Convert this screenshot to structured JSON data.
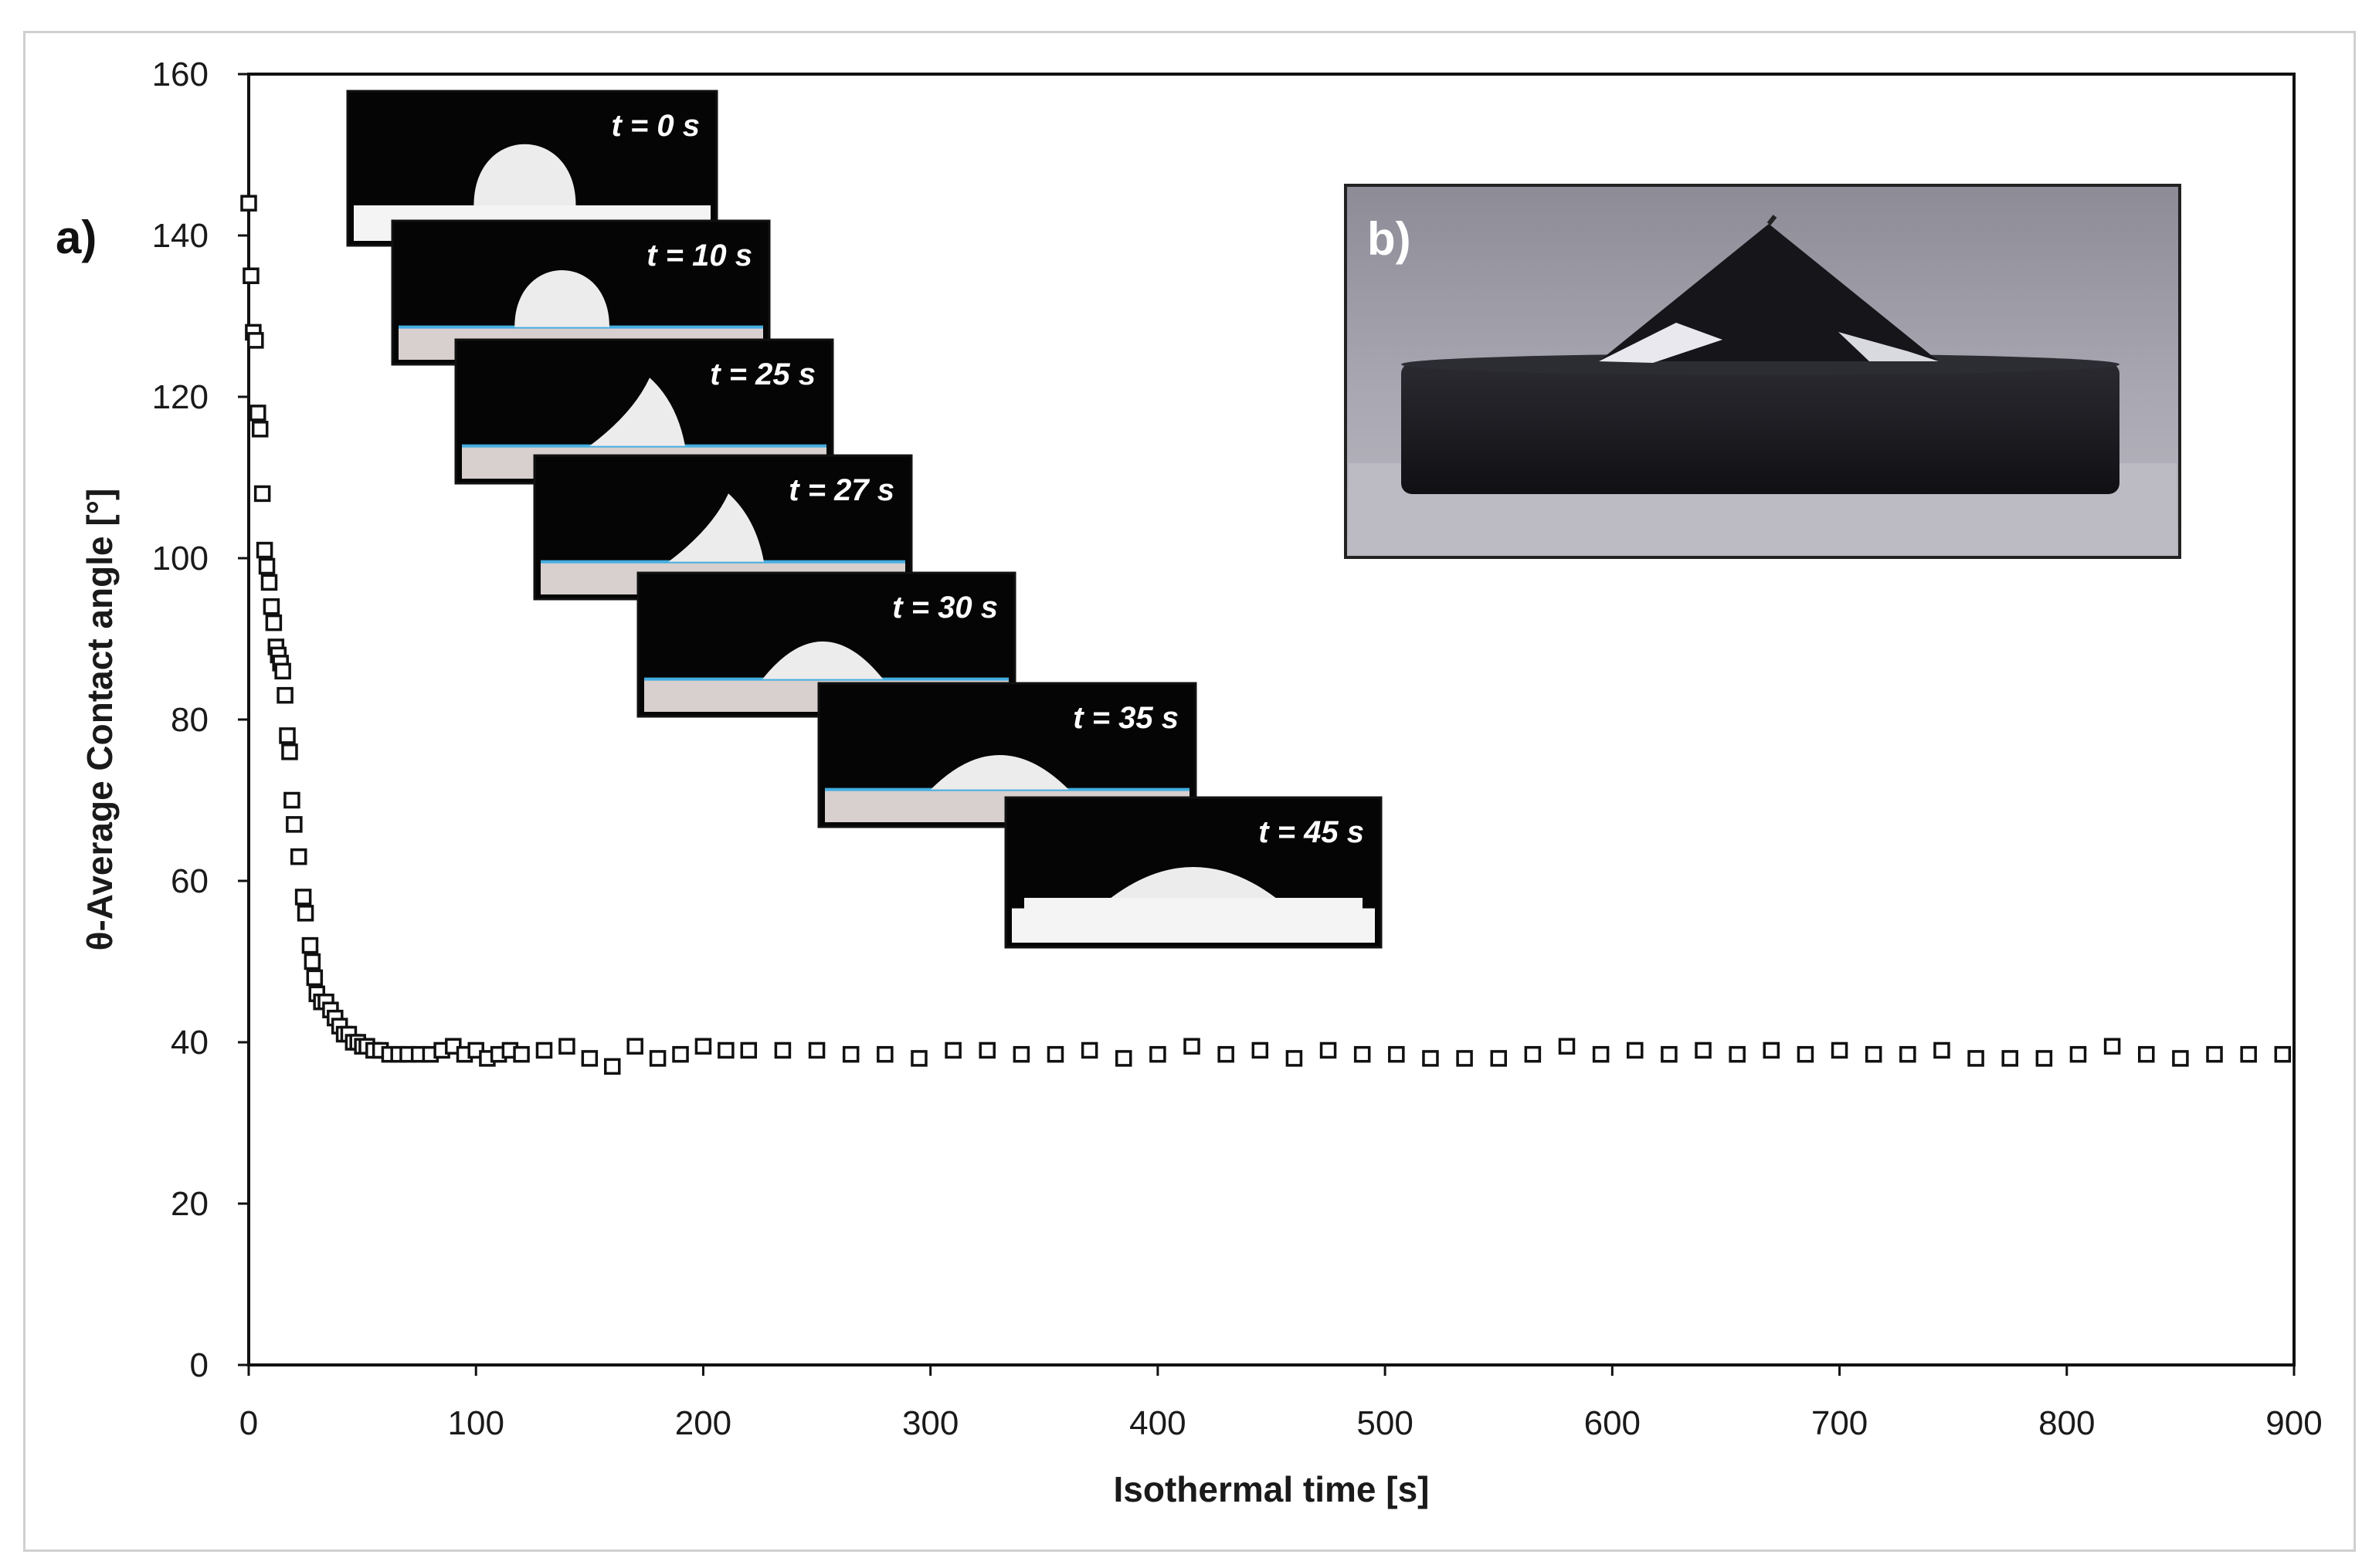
{
  "chart_data": {
    "type": "scatter",
    "xlabel": "Isothermal time [s]",
    "ylabel": "θ-Average Contact angle [°]",
    "xlim": [
      0,
      900
    ],
    "ylim": [
      0,
      160
    ],
    "xticks": [
      "0",
      "100",
      "200",
      "300",
      "400",
      "500",
      "600",
      "700",
      "800",
      "900"
    ],
    "yticks": [
      "0",
      "20",
      "40",
      "60",
      "80",
      "100",
      "120",
      "140",
      "160"
    ],
    "grid": false,
    "marker": "open-square",
    "panel_labels": {
      "a": "a)",
      "b": "b)"
    },
    "series": [
      {
        "x": [
          0,
          1,
          2,
          3,
          4,
          5,
          6,
          7,
          8,
          9,
          10,
          11,
          12,
          13,
          14,
          15,
          16,
          17,
          18,
          19,
          20,
          22,
          24,
          25,
          27,
          28,
          29,
          30,
          32,
          34,
          36,
          38,
          40,
          42,
          44,
          46,
          48,
          50,
          52,
          55,
          58,
          62,
          66,
          70,
          75,
          80,
          85,
          90,
          95,
          100,
          105,
          110,
          115,
          120,
          130,
          140,
          150,
          160,
          170,
          180,
          190,
          200,
          210,
          220,
          235,
          250,
          265,
          280,
          295,
          310,
          325,
          340,
          355,
          370,
          385,
          400,
          415,
          430,
          445,
          460,
          475,
          490,
          505,
          520,
          535,
          550,
          565,
          580,
          595,
          610,
          625,
          640,
          655,
          670,
          685,
          700,
          715,
          730,
          745,
          760,
          775,
          790,
          805,
          820,
          835,
          850,
          865,
          880,
          895
        ],
        "y": [
          144,
          135,
          128,
          127,
          118,
          116,
          108,
          101,
          99,
          97,
          94,
          92,
          89,
          88,
          87,
          86,
          83,
          78,
          76,
          70,
          67,
          63,
          58,
          56,
          52,
          50,
          48,
          46,
          45,
          45,
          44,
          43,
          42,
          41,
          41,
          40,
          40,
          39.5,
          39.5,
          39,
          39,
          38.5,
          38.5,
          38.5,
          38.5,
          38.5,
          39,
          39.5,
          38.5,
          39,
          38,
          38.5,
          39,
          38.5,
          39,
          39.5,
          38,
          37,
          39.5,
          38,
          38.5,
          39.5,
          39,
          39,
          39,
          39,
          38.5,
          38.5,
          38,
          39,
          39,
          38.5,
          38.5,
          39,
          38,
          38.5,
          39.5,
          38.5,
          39,
          38,
          39,
          38.5,
          38.5,
          38,
          38,
          38,
          38.5,
          39.5,
          38.5,
          39,
          38.5,
          39,
          38.5,
          39,
          38.5,
          39,
          38.5,
          38.5,
          39,
          38,
          38,
          38,
          38.5,
          39.5,
          38.5,
          38,
          38.5,
          38.5,
          38.5
        ]
      }
    ],
    "inset_labels": [
      "t = 0 s",
      "t = 10 s",
      "t = 25 s",
      "t = 27 s",
      "t = 30 s",
      "t = 35 s",
      "t = 45 s"
    ]
  }
}
